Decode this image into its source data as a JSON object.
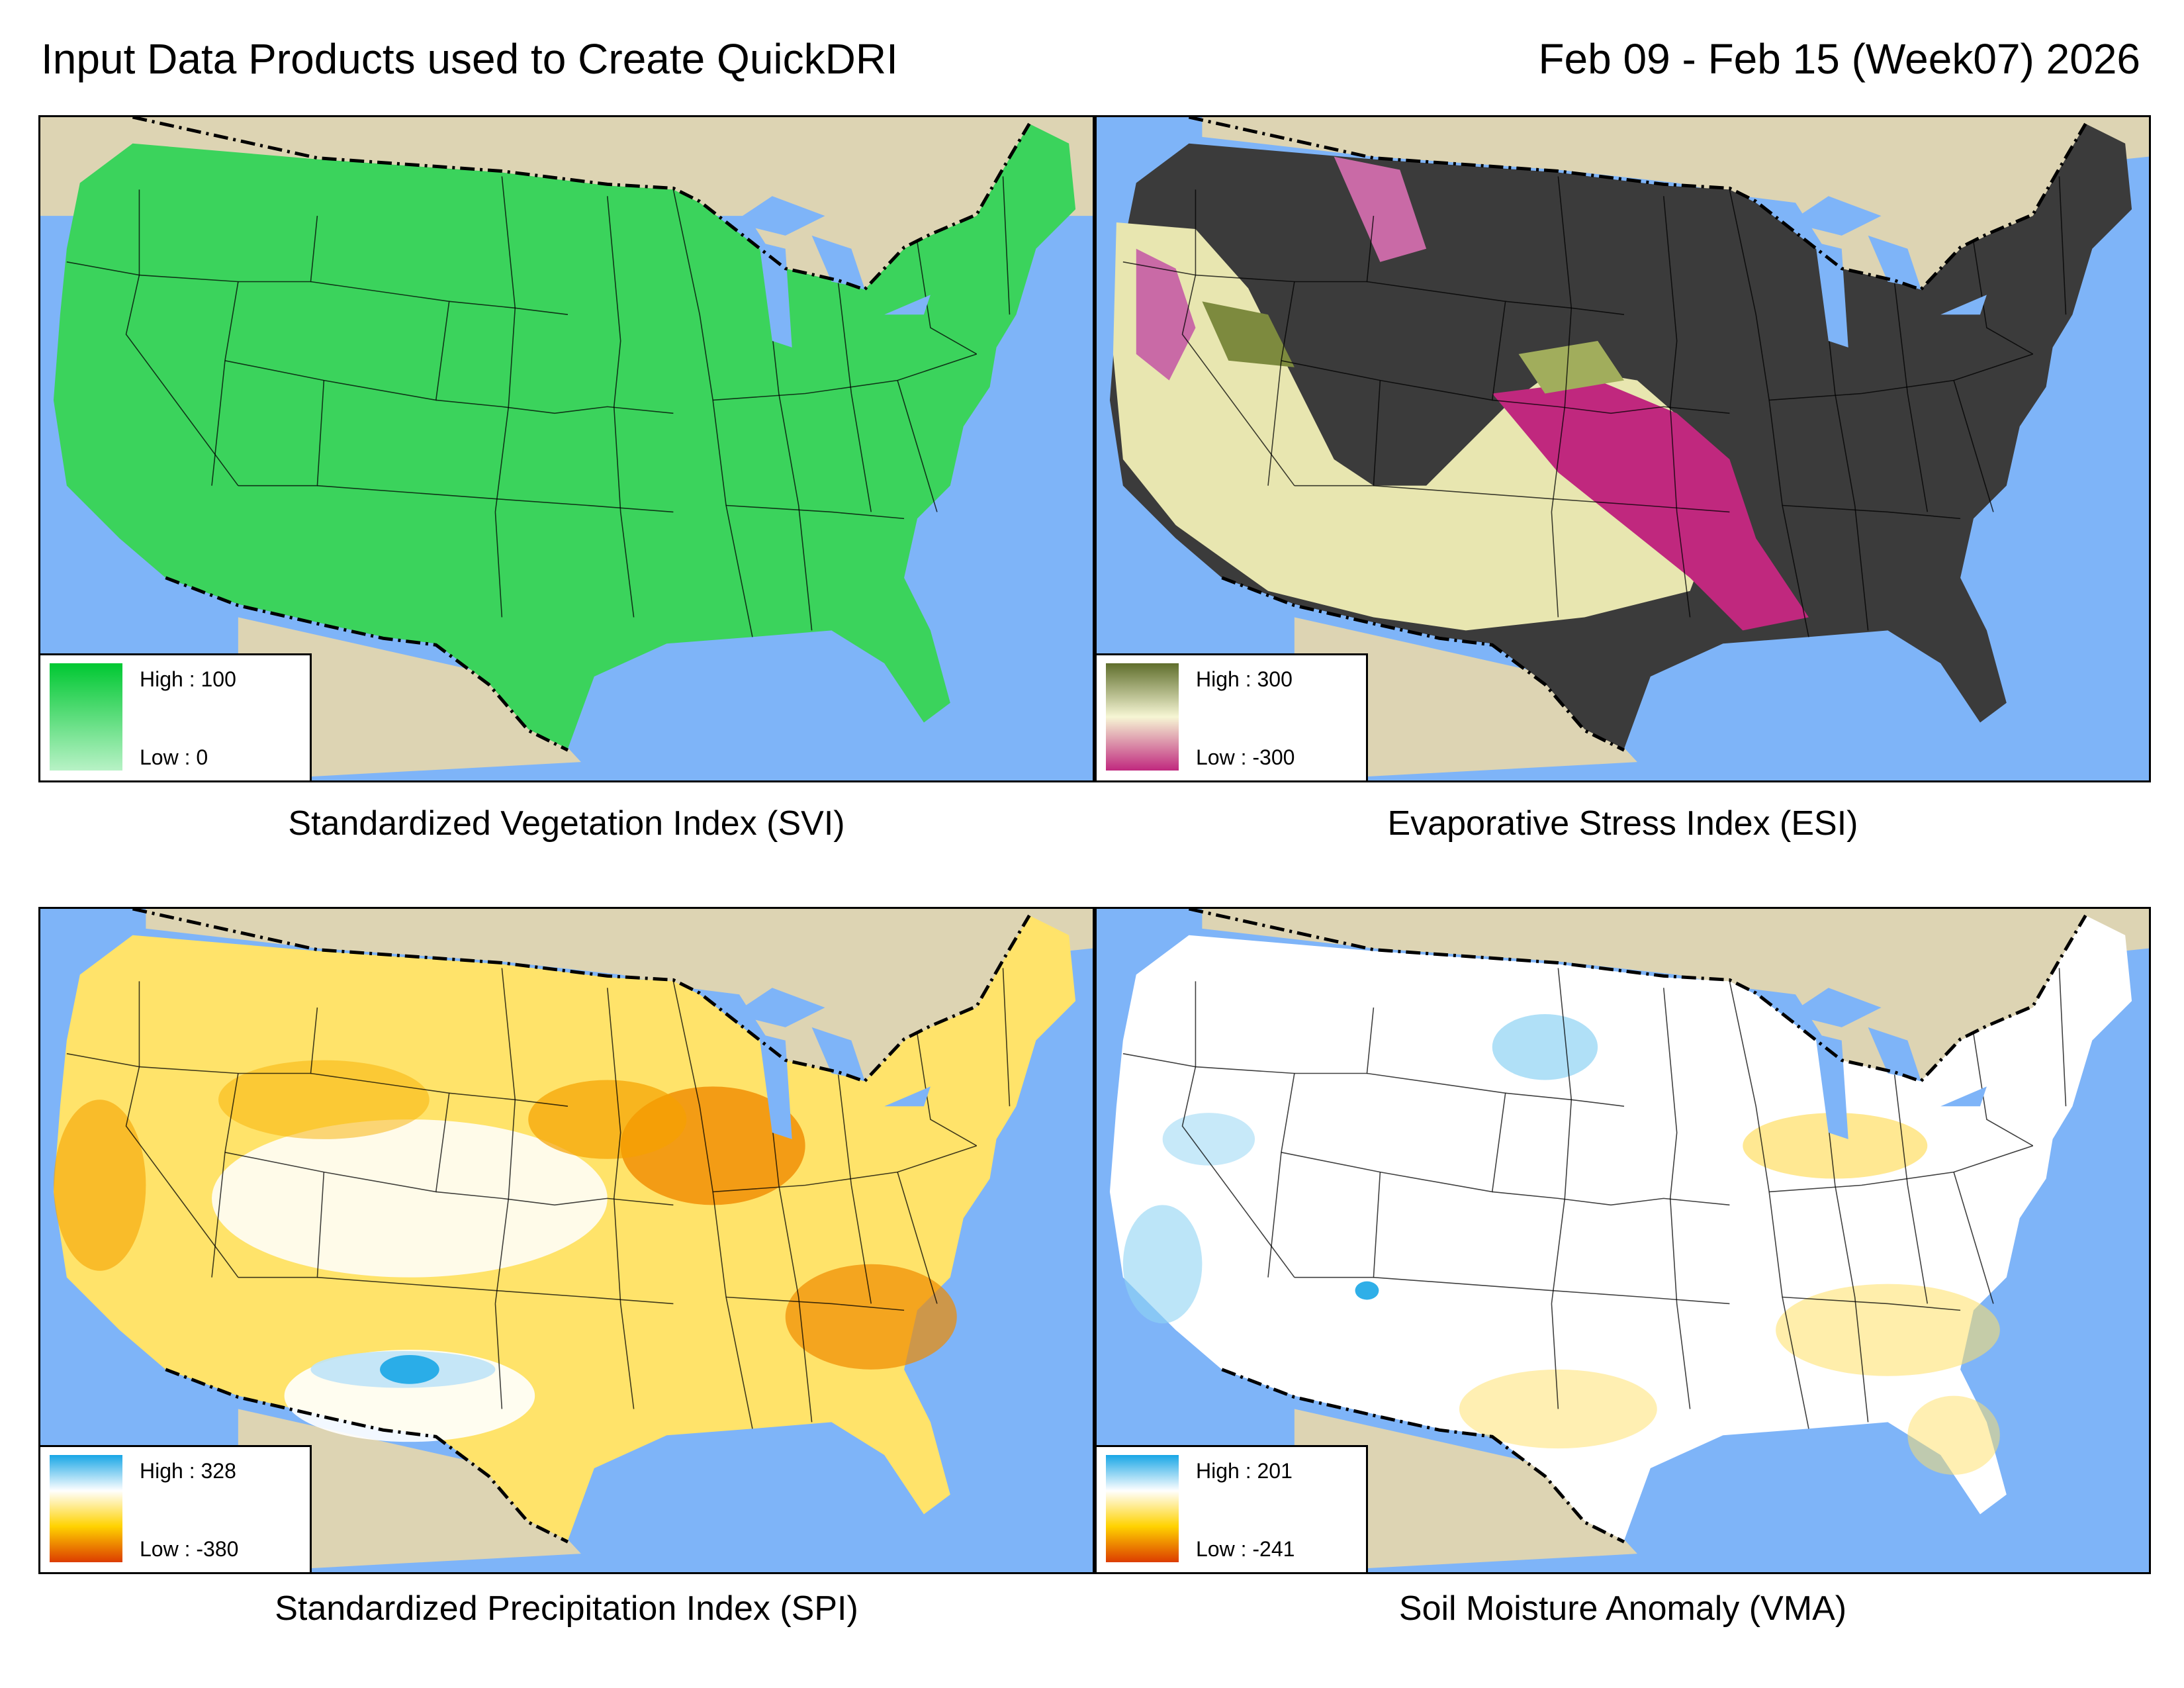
{
  "header": {
    "title": "Input Data Products used to Create QuickDRI",
    "date_range": "Feb 09 - Feb 15 (Week07) 2026"
  },
  "colors": {
    "ocean": "#7eb4f8",
    "land_outside": "#ddd4b3",
    "border": "#000000"
  },
  "panels": [
    {
      "id": "svi",
      "caption": "Standardized Vegetation Index (SVI)",
      "legend_high": "High : 100",
      "legend_low": "Low : 0",
      "ramp": [
        "#00c832",
        "#b8f2c6"
      ],
      "fill": "#3bd35c"
    },
    {
      "id": "esi",
      "caption": "Evaporative Stress Index (ESI)",
      "legend_high": "High : 300",
      "legend_low": "Low : -300",
      "ramp": [
        "#5f6e2c",
        "#f6f6d4",
        "#c0287e"
      ],
      "fill": "#3b3b3b"
    },
    {
      "id": "spi",
      "caption": "Standardized Precipitation Index (SPI)",
      "legend_high": "High : 328",
      "legend_low": "Low : -380",
      "ramp": [
        "#18a6e6",
        "#ffffff",
        "#ffd200",
        "#dc3c00"
      ],
      "fill": "#ffe36a"
    },
    {
      "id": "vma",
      "caption": "Soil Moisture Anomaly (VMA)",
      "legend_high": "High : 201",
      "legend_low": "Low : -241",
      "ramp": [
        "#18a6e6",
        "#ffffff",
        "#ffd200",
        "#dc3c00"
      ],
      "fill": "#ffffff"
    }
  ]
}
